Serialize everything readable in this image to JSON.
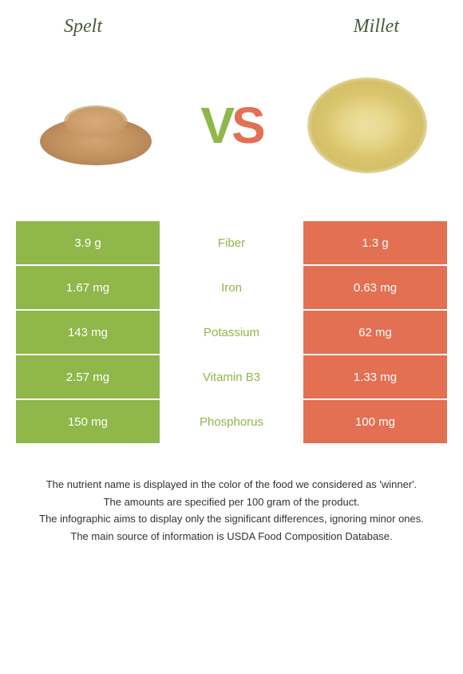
{
  "foods": {
    "left": "Spelt",
    "right": "Millet"
  },
  "vs": {
    "v": "V",
    "s": "S"
  },
  "colors": {
    "left_bg": "#8fb749",
    "right_bg": "#e37052",
    "nutrient_left_winner": "#8fb749",
    "nutrient_right_winner": "#e37052"
  },
  "rows": [
    {
      "left": "3.9 g",
      "nutrient": "Fiber",
      "right": "1.3 g",
      "winner": "left"
    },
    {
      "left": "1.67 mg",
      "nutrient": "Iron",
      "right": "0.63 mg",
      "winner": "left"
    },
    {
      "left": "143 mg",
      "nutrient": "Potassium",
      "right": "62 mg",
      "winner": "left"
    },
    {
      "left": "2.57 mg",
      "nutrient": "Vitamin B3",
      "right": "1.33 mg",
      "winner": "left"
    },
    {
      "left": "150 mg",
      "nutrient": "Phosphorus",
      "right": "100 mg",
      "winner": "left"
    }
  ],
  "footer": {
    "line1": "The nutrient name is displayed in the color of the food we considered as 'winner'.",
    "line2": "The amounts are specified per 100 gram of the product.",
    "line3": "The infographic aims to display only the significant differences, ignoring minor ones.",
    "line4": "The main source of information is USDA Food Composition Database."
  }
}
